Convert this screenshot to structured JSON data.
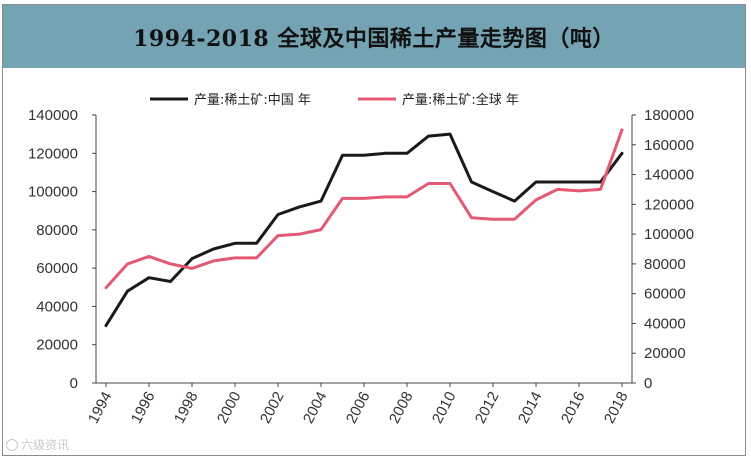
{
  "chart_data": {
    "type": "line",
    "title": "1994-2018 全球及中国稀土产量走势图（吨）",
    "x": [
      1994,
      1995,
      1996,
      1997,
      1998,
      1999,
      2000,
      2001,
      2002,
      2003,
      2004,
      2005,
      2006,
      2007,
      2008,
      2009,
      2010,
      2011,
      2012,
      2013,
      2014,
      2015,
      2016,
      2017,
      2018
    ],
    "x_tick_labels": [
      "1994",
      "1996",
      "1998",
      "2000",
      "2002",
      "2004",
      "2006",
      "2008",
      "2010",
      "2012",
      "2014",
      "2016",
      "2018"
    ],
    "series": [
      {
        "name": "产量:稀土矿:中国 年",
        "axis": "left",
        "color": "#1a1a1a",
        "values": [
          30000,
          48000,
          55000,
          53000,
          65000,
          70000,
          73000,
          73000,
          88000,
          92000,
          95000,
          119000,
          119000,
          120000,
          120000,
          129000,
          130000,
          105000,
          100000,
          95000,
          105000,
          105000,
          105000,
          105000,
          120000
        ]
      },
      {
        "name": "产量:稀土矿:全球 年",
        "axis": "right",
        "color": "#e35a74",
        "values": [
          64000,
          80000,
          85000,
          80000,
          77000,
          82000,
          84000,
          84000,
          99000,
          100000,
          103000,
          124000,
          124000,
          125000,
          125000,
          134000,
          134000,
          111000,
          110000,
          110000,
          123000,
          130000,
          129000,
          130000,
          170000
        ]
      }
    ],
    "y_left": {
      "min": 0,
      "max": 140000,
      "ticks": [
        0,
        20000,
        40000,
        60000,
        80000,
        100000,
        120000,
        140000
      ]
    },
    "y_right": {
      "min": 0,
      "max": 180000,
      "ticks": [
        0,
        20000,
        40000,
        60000,
        80000,
        100000,
        120000,
        140000,
        160000,
        180000
      ]
    },
    "legend_position": "top",
    "grid": false
  },
  "watermark": "六级资讯"
}
